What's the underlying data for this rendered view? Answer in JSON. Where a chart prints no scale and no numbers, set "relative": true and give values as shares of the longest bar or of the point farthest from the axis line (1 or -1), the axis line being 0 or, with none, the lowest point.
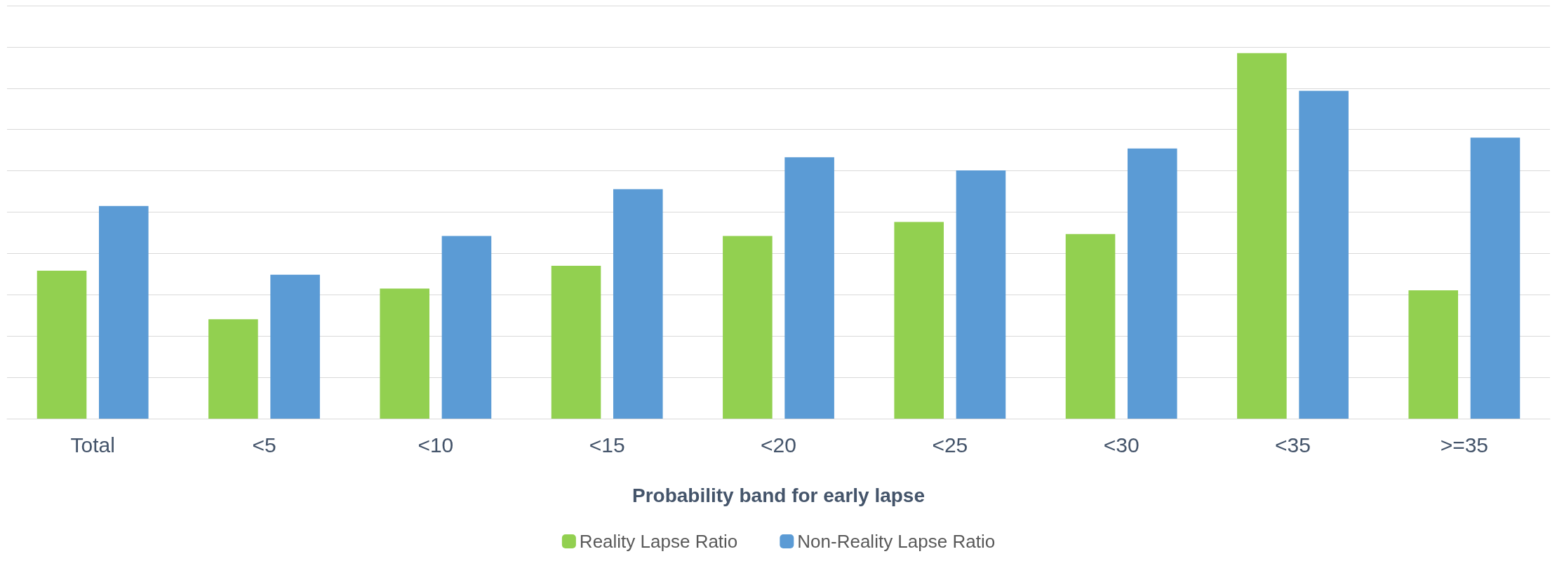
{
  "chart_data": {
    "type": "bar",
    "xlabel": "Probability band for early lapse",
    "categories": [
      "Total",
      "<5",
      "<10",
      "<15",
      "<20",
      "<25",
      "<30",
      "<35",
      ">=35"
    ],
    "series": [
      {
        "name": "Reality Lapse Ratio",
        "color": "#92d050",
        "values": [
          0.405,
          0.272,
          0.356,
          0.418,
          0.5,
          0.538,
          0.505,
          1,
          0.351
        ]
      },
      {
        "name": "Non-Reality Lapse Ratio",
        "color": "#5b9bd5",
        "values": [
          0.582,
          0.394,
          0.5,
          0.628,
          0.715,
          0.679,
          0.739,
          0.897,
          0.769
        ]
      }
    ],
    "relative": true,
    "grid": true,
    "legend": "bottom"
  }
}
